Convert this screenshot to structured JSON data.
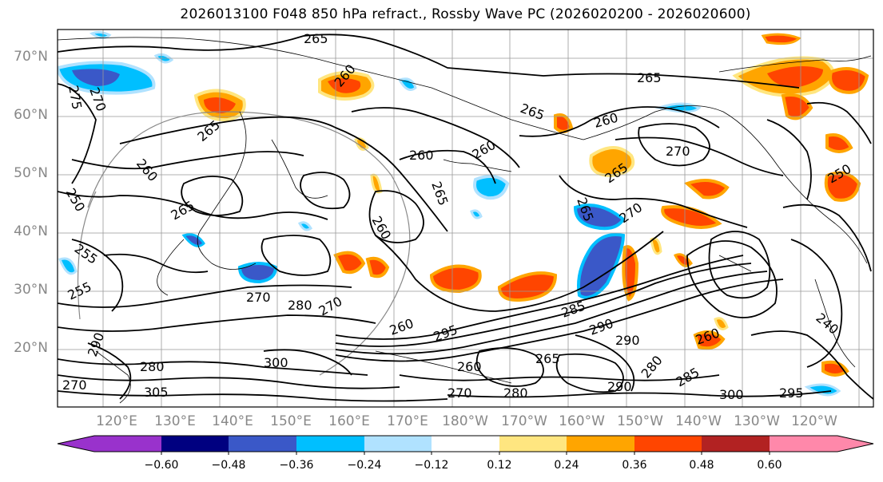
{
  "title": "2026013100 F048 850 hPa refract., Rossby Wave PC (2026020200 - 2026020600)",
  "lat_labels": [
    "70°N",
    "60°N",
    "50°N",
    "40°N",
    "30°N",
    "20°N"
  ],
  "lon_labels": [
    "120°E",
    "130°E",
    "140°E",
    "150°E",
    "160°E",
    "170°E",
    "180°W",
    "170°W",
    "160°W",
    "150°W",
    "140°W",
    "130°W",
    "120°W"
  ],
  "contour_labels": [
    "265",
    "265",
    "260",
    "270",
    "275",
    "265",
    "260",
    "265",
    "260",
    "260",
    "265",
    "270",
    "265",
    "260",
    "265",
    "260",
    "265",
    "270",
    "270",
    "280",
    "270",
    "255",
    "255",
    "250",
    "260",
    "295",
    "285",
    "290",
    "290",
    "290",
    "280",
    "270",
    "300",
    "305",
    "270",
    "280",
    "260",
    "265",
    "280",
    "285",
    "290",
    "300",
    "295",
    "260",
    "240",
    "250"
  ],
  "colorbar": {
    "ticks": [
      "−0.60",
      "−0.48",
      "−0.36",
      "−0.24",
      "−0.12",
      "0.12",
      "0.24",
      "0.36",
      "0.48",
      "0.60"
    ],
    "colors": [
      "#9932cc",
      "#000080",
      "#3a58c8",
      "#00bfff",
      "#b0e2ff",
      "#ffffff",
      "#ffe680",
      "#ffa500",
      "#ff4500",
      "#b22222",
      "#ff88aa"
    ]
  }
}
